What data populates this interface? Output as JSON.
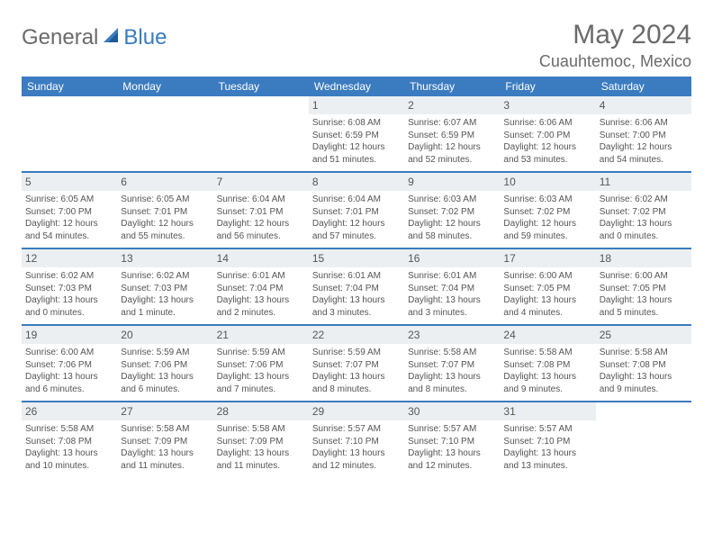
{
  "logo": {
    "text1": "General",
    "text2": "Blue"
  },
  "title": "May 2024",
  "subtitle": "Cuauhtemoc, Mexico",
  "colors": {
    "header_bg": "#3b7bbf",
    "header_fg": "#ffffff",
    "text": "#555555",
    "daynum_bg": "#eceff1",
    "rule": "#3b7bbf"
  },
  "font_sizes": {
    "title": 30,
    "subtitle": 18,
    "dayheader": 12,
    "daynum": 12,
    "body": 10
  },
  "day_headers": [
    "Sunday",
    "Monday",
    "Tuesday",
    "Wednesday",
    "Thursday",
    "Friday",
    "Saturday"
  ],
  "weeks": [
    [
      null,
      null,
      null,
      {
        "n": "1",
        "sr": "6:08 AM",
        "ss": "6:59 PM",
        "dl": "12 hours and 51 minutes."
      },
      {
        "n": "2",
        "sr": "6:07 AM",
        "ss": "6:59 PM",
        "dl": "12 hours and 52 minutes."
      },
      {
        "n": "3",
        "sr": "6:06 AM",
        "ss": "7:00 PM",
        "dl": "12 hours and 53 minutes."
      },
      {
        "n": "4",
        "sr": "6:06 AM",
        "ss": "7:00 PM",
        "dl": "12 hours and 54 minutes."
      }
    ],
    [
      {
        "n": "5",
        "sr": "6:05 AM",
        "ss": "7:00 PM",
        "dl": "12 hours and 54 minutes."
      },
      {
        "n": "6",
        "sr": "6:05 AM",
        "ss": "7:01 PM",
        "dl": "12 hours and 55 minutes."
      },
      {
        "n": "7",
        "sr": "6:04 AM",
        "ss": "7:01 PM",
        "dl": "12 hours and 56 minutes."
      },
      {
        "n": "8",
        "sr": "6:04 AM",
        "ss": "7:01 PM",
        "dl": "12 hours and 57 minutes."
      },
      {
        "n": "9",
        "sr": "6:03 AM",
        "ss": "7:02 PM",
        "dl": "12 hours and 58 minutes."
      },
      {
        "n": "10",
        "sr": "6:03 AM",
        "ss": "7:02 PM",
        "dl": "12 hours and 59 minutes."
      },
      {
        "n": "11",
        "sr": "6:02 AM",
        "ss": "7:02 PM",
        "dl": "13 hours and 0 minutes."
      }
    ],
    [
      {
        "n": "12",
        "sr": "6:02 AM",
        "ss": "7:03 PM",
        "dl": "13 hours and 0 minutes."
      },
      {
        "n": "13",
        "sr": "6:02 AM",
        "ss": "7:03 PM",
        "dl": "13 hours and 1 minute."
      },
      {
        "n": "14",
        "sr": "6:01 AM",
        "ss": "7:04 PM",
        "dl": "13 hours and 2 minutes."
      },
      {
        "n": "15",
        "sr": "6:01 AM",
        "ss": "7:04 PM",
        "dl": "13 hours and 3 minutes."
      },
      {
        "n": "16",
        "sr": "6:01 AM",
        "ss": "7:04 PM",
        "dl": "13 hours and 3 minutes."
      },
      {
        "n": "17",
        "sr": "6:00 AM",
        "ss": "7:05 PM",
        "dl": "13 hours and 4 minutes."
      },
      {
        "n": "18",
        "sr": "6:00 AM",
        "ss": "7:05 PM",
        "dl": "13 hours and 5 minutes."
      }
    ],
    [
      {
        "n": "19",
        "sr": "6:00 AM",
        "ss": "7:06 PM",
        "dl": "13 hours and 6 minutes."
      },
      {
        "n": "20",
        "sr": "5:59 AM",
        "ss": "7:06 PM",
        "dl": "13 hours and 6 minutes."
      },
      {
        "n": "21",
        "sr": "5:59 AM",
        "ss": "7:06 PM",
        "dl": "13 hours and 7 minutes."
      },
      {
        "n": "22",
        "sr": "5:59 AM",
        "ss": "7:07 PM",
        "dl": "13 hours and 8 minutes."
      },
      {
        "n": "23",
        "sr": "5:58 AM",
        "ss": "7:07 PM",
        "dl": "13 hours and 8 minutes."
      },
      {
        "n": "24",
        "sr": "5:58 AM",
        "ss": "7:08 PM",
        "dl": "13 hours and 9 minutes."
      },
      {
        "n": "25",
        "sr": "5:58 AM",
        "ss": "7:08 PM",
        "dl": "13 hours and 9 minutes."
      }
    ],
    [
      {
        "n": "26",
        "sr": "5:58 AM",
        "ss": "7:08 PM",
        "dl": "13 hours and 10 minutes."
      },
      {
        "n": "27",
        "sr": "5:58 AM",
        "ss": "7:09 PM",
        "dl": "13 hours and 11 minutes."
      },
      {
        "n": "28",
        "sr": "5:58 AM",
        "ss": "7:09 PM",
        "dl": "13 hours and 11 minutes."
      },
      {
        "n": "29",
        "sr": "5:57 AM",
        "ss": "7:10 PM",
        "dl": "13 hours and 12 minutes."
      },
      {
        "n": "30",
        "sr": "5:57 AM",
        "ss": "7:10 PM",
        "dl": "13 hours and 12 minutes."
      },
      {
        "n": "31",
        "sr": "5:57 AM",
        "ss": "7:10 PM",
        "dl": "13 hours and 13 minutes."
      },
      null
    ]
  ],
  "labels": {
    "sunrise": "Sunrise:",
    "sunset": "Sunset:",
    "daylight": "Daylight:"
  }
}
